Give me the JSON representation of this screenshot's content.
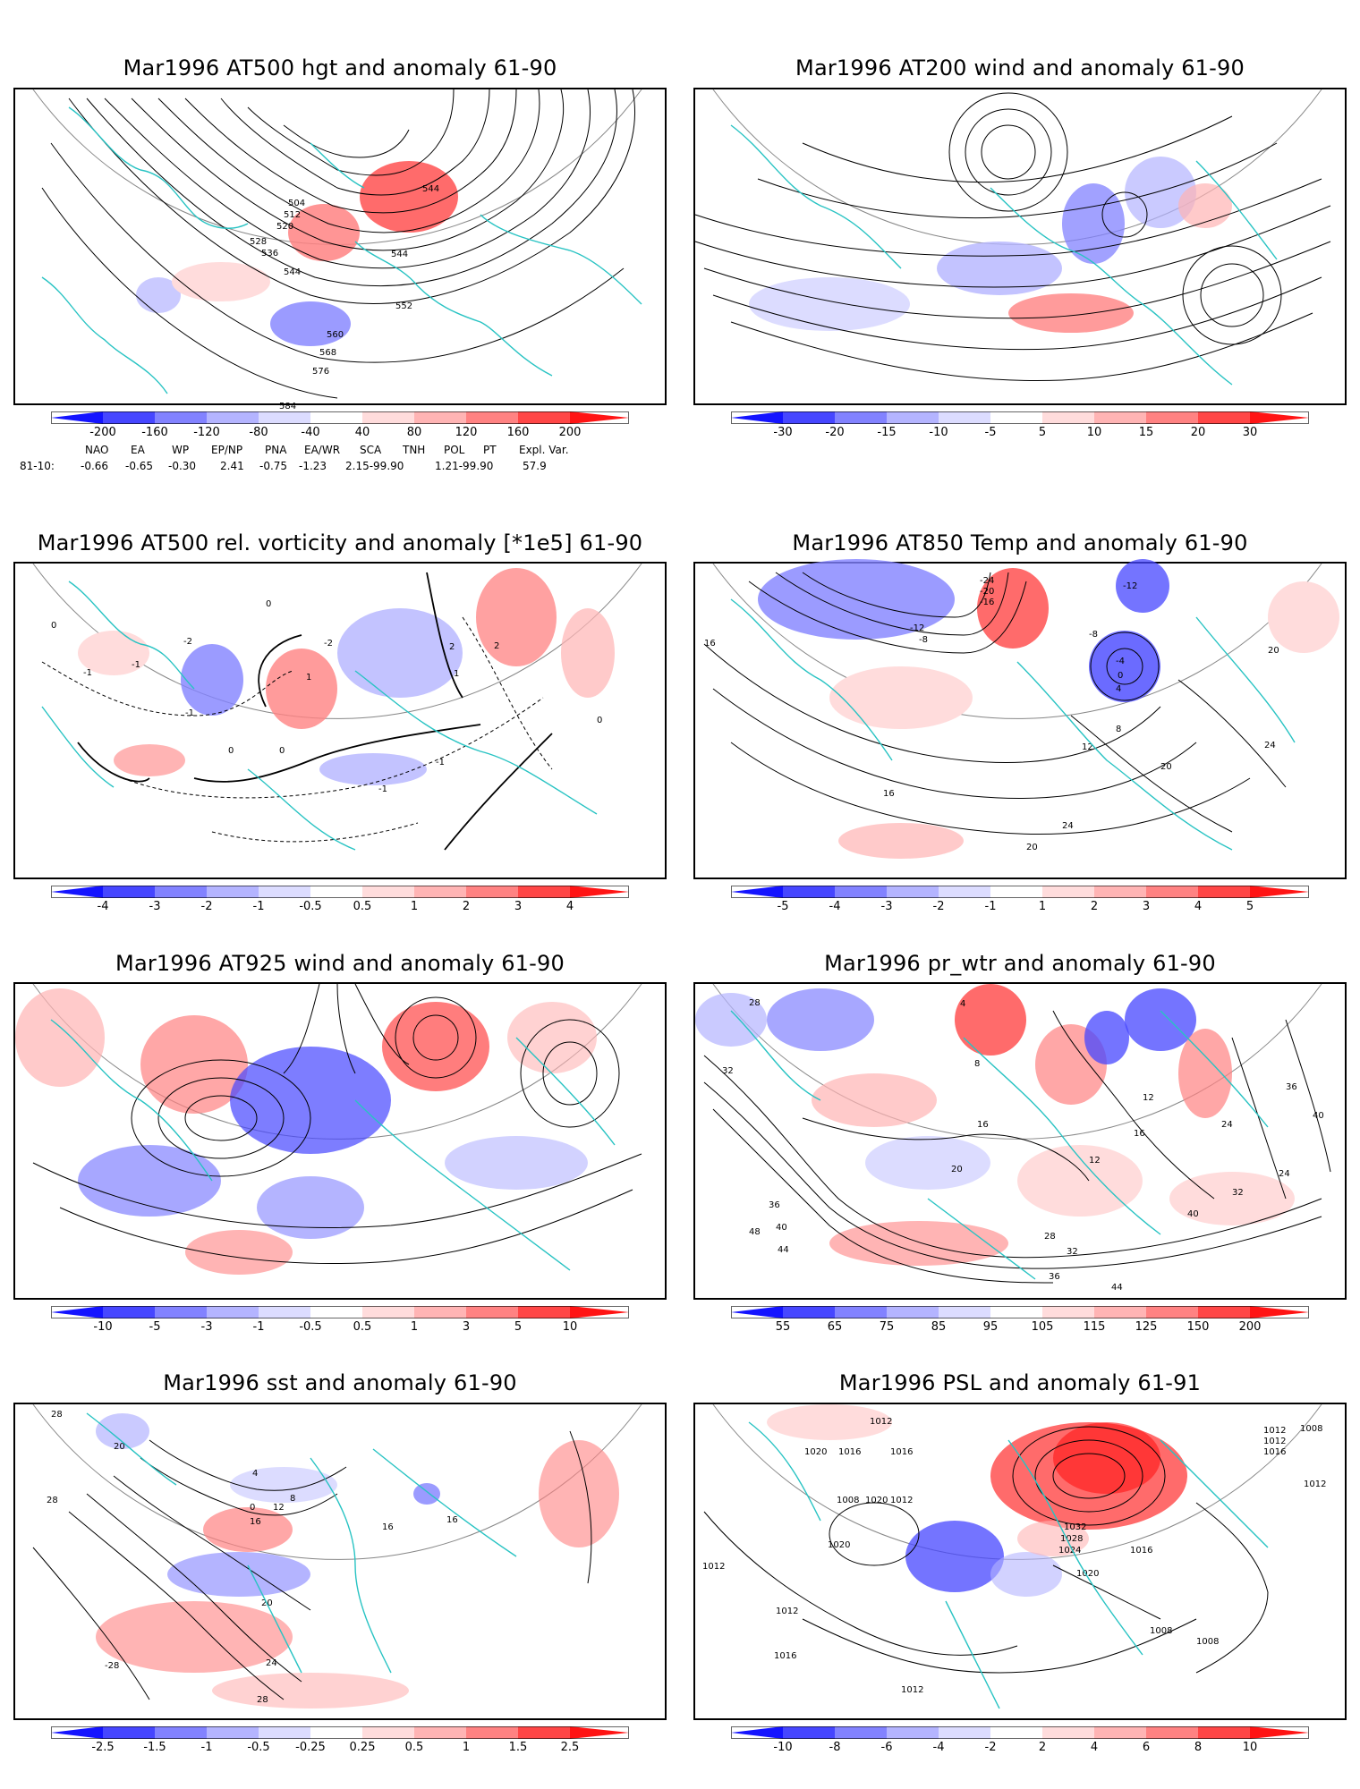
{
  "panels": [
    {
      "title": "Mar1996 AT500 hgt and anomaly 61-90",
      "kind": "contours",
      "contour_labels": [
        "504",
        "512",
        "520",
        "528",
        "536",
        "544",
        "544",
        "544",
        "552",
        "560",
        "568",
        "576",
        "584"
      ],
      "colorbar": {
        "labels": [
          "-200",
          "-160",
          "-120",
          "-80",
          "-40",
          "40",
          "80",
          "120",
          "160",
          "200"
        ]
      }
    },
    {
      "title": "Mar1996 AT200 wind and anomaly 61-90",
      "kind": "streamlines",
      "contour_labels": [],
      "colorbar": {
        "labels": [
          "-30",
          "-20",
          "-15",
          "-10",
          "-5",
          "5",
          "10",
          "15",
          "20",
          "30"
        ]
      }
    },
    {
      "title": "Mar1996 AT500 rel. vorticity and anomaly [*1e5] 61-90",
      "kind": "contours",
      "contour_labels": [
        "0",
        "-1",
        "-1",
        "-1",
        "-1",
        "-1",
        "1",
        "1",
        "2",
        "2",
        "-2",
        "-2",
        "0",
        "0",
        "0",
        "0"
      ],
      "colorbar": {
        "labels": [
          "-4",
          "-3",
          "-2",
          "-1",
          "-0.5",
          "0.5",
          "1",
          "2",
          "3",
          "4"
        ]
      }
    },
    {
      "title": "Mar1996 AT850 Temp and anomaly 61-90",
      "kind": "contours",
      "contour_labels": [
        "-24",
        "-20",
        "-16",
        "-12",
        "-8",
        "-12",
        "-8",
        "-4",
        "0",
        "4",
        "8",
        "12",
        "16",
        "16",
        "20",
        "20",
        "24",
        "24",
        "20"
      ],
      "colorbar": {
        "labels": [
          "-5",
          "-4",
          "-3",
          "-2",
          "-1",
          "1",
          "2",
          "3",
          "4",
          "5"
        ]
      }
    },
    {
      "title": "Mar1996 AT925 wind and anomaly 61-90",
      "kind": "streamlines",
      "contour_labels": [],
      "colorbar": {
        "labels": [
          "-10",
          "-5",
          "-3",
          "-1",
          "-0.5",
          "0.5",
          "1",
          "3",
          "5",
          "10"
        ]
      }
    },
    {
      "title": "Mar1996 pr_wtr and anomaly 61-90",
      "kind": "contours",
      "contour_labels": [
        "28",
        "32",
        "36",
        "40",
        "44",
        "48",
        "4",
        "8",
        "12",
        "16",
        "20",
        "24",
        "28",
        "32",
        "36",
        "40",
        "44",
        "12",
        "16",
        "24",
        "32",
        "36",
        "40"
      ],
      "colorbar": {
        "labels": [
          "55",
          "65",
          "75",
          "85",
          "95",
          "105",
          "115",
          "125",
          "150",
          "200"
        ]
      }
    },
    {
      "title": "Mar1996 sst and anomaly 61-90",
      "kind": "contours",
      "contour_labels": [
        "28",
        "20",
        "4",
        "0",
        "8",
        "12",
        "16",
        "20",
        "24",
        "28",
        "28",
        "16",
        "16",
        "-28"
      ],
      "colorbar": {
        "labels": [
          "-2.5",
          "-1.5",
          "-1",
          "-0.5",
          "-0.25",
          "0.25",
          "0.5",
          "1",
          "1.5",
          "2.5"
        ]
      }
    },
    {
      "title": "Mar1996 PSL and anomaly 61-91",
      "kind": "contours",
      "contour_labels": [
        "1012",
        "1016",
        "1016",
        "1020",
        "1008",
        "1020",
        "1012",
        "1032",
        "1028",
        "1024",
        "1016",
        "1020",
        "1012",
        "1012",
        "1016",
        "1020",
        "1012",
        "1012",
        "1012",
        "1008",
        "1008",
        "1016",
        "1012",
        "1008"
      ],
      "colorbar": {
        "labels": [
          "-10",
          "-8",
          "-6",
          "-4",
          "-2",
          "2",
          "4",
          "6",
          "8",
          "10"
        ]
      }
    }
  ],
  "teleconnection_indices": {
    "names": [
      "NAO",
      "EA",
      "WP",
      "EP/NP",
      "PNA",
      "EA/WR",
      "SCA",
      "TNH",
      "POL",
      "PT",
      "Expl. Var."
    ],
    "row_label": "81-10:",
    "values": [
      "-0.66",
      "-0.65",
      "-0.30",
      "2.41",
      "-0.75",
      "-1.23",
      "2.15-99.90",
      "1.21-99.90",
      "57.9"
    ]
  },
  "colors": {
    "coast": "#28c3c3",
    "contour": "#000000",
    "graticule": "#a6a6a6",
    "scale": [
      "#1414ff",
      "#4646ff",
      "#8282ff",
      "#b4b4ff",
      "#dcdcff",
      "#ffffff",
      "#ffdcdc",
      "#ffb4b4",
      "#ff8282",
      "#ff4646",
      "#ff1414"
    ]
  }
}
